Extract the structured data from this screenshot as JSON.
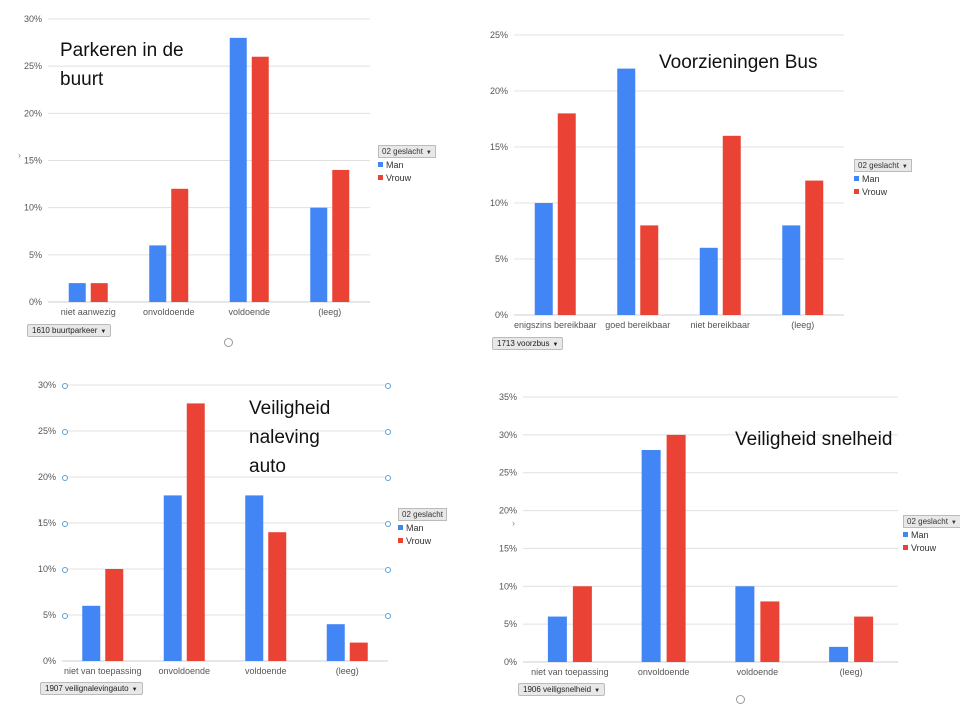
{
  "colors": {
    "man": "#4285f4",
    "vrouw": "#ea4335",
    "grid": "#e0e0e0"
  },
  "chart_data": [
    {
      "type": "bar",
      "title": "Parkeren in de buurt",
      "title_lines": [
        "Parkeren in de",
        "buurt"
      ],
      "categories": [
        "niet aanwezig",
        "onvoldoende",
        "voldoende",
        "(leeg)"
      ],
      "series": [
        {
          "name": "Man",
          "values": [
            2,
            6,
            28,
            10
          ]
        },
        {
          "name": "Vrouw",
          "values": [
            2,
            12,
            26,
            14
          ]
        }
      ],
      "yticks": [
        "0%",
        "5%",
        "10%",
        "15%",
        "20%",
        "25%",
        "30%"
      ],
      "ylim": [
        0,
        30
      ],
      "legend_title": "02 geslacht",
      "filter_label": "1610 buurtparkeer"
    },
    {
      "type": "bar",
      "title": "Voorzieningen Bus",
      "title_lines": [
        "Voorzieningen Bus"
      ],
      "categories": [
        "enigszins bereikbaar",
        "goed bereikbaar",
        "niet bereikbaar",
        "(leeg)"
      ],
      "series": [
        {
          "name": "Man",
          "values": [
            10,
            22,
            6,
            8
          ]
        },
        {
          "name": "Vrouw",
          "values": [
            18,
            8,
            16,
            12
          ]
        }
      ],
      "yticks": [
        "0%",
        "5%",
        "10%",
        "15%",
        "20%",
        "25%"
      ],
      "ylim": [
        0,
        25
      ],
      "legend_title": "02 geslacht",
      "filter_label": "1713 voorzbus"
    },
    {
      "type": "bar",
      "title": "Veiligheid naleving auto",
      "title_lines": [
        "Veiligheid",
        "naleving",
        "auto"
      ],
      "categories": [
        "niet van toepassing",
        "onvoldoende",
        "voldoende",
        "(leeg)"
      ],
      "series": [
        {
          "name": "Man",
          "values": [
            6,
            18,
            18,
            4
          ]
        },
        {
          "name": "Vrouw",
          "values": [
            10,
            28,
            14,
            2
          ]
        }
      ],
      "yticks": [
        "0%",
        "5%",
        "10%",
        "15%",
        "20%",
        "25%",
        "30%"
      ],
      "ylim": [
        0,
        30
      ],
      "legend_title": "02 geslacht",
      "filter_label": "1907 veilignalevingauto"
    },
    {
      "type": "bar",
      "title": "Veiligheid snelheid",
      "title_lines": [
        "Veiligheid snelheid"
      ],
      "categories": [
        "niet van toepassing",
        "onvoldoende",
        "voldoende",
        "(leeg)"
      ],
      "series": [
        {
          "name": "Man",
          "values": [
            6,
            28,
            10,
            2
          ]
        },
        {
          "name": "Vrouw",
          "values": [
            10,
            30,
            8,
            6
          ]
        }
      ],
      "yticks": [
        "0%",
        "5%",
        "10%",
        "15%",
        "20%",
        "25%",
        "30%",
        "35%"
      ],
      "ylim": [
        0,
        35
      ],
      "legend_title": "02 geslacht",
      "filter_label": "1906 veiligsnelheid"
    }
  ]
}
